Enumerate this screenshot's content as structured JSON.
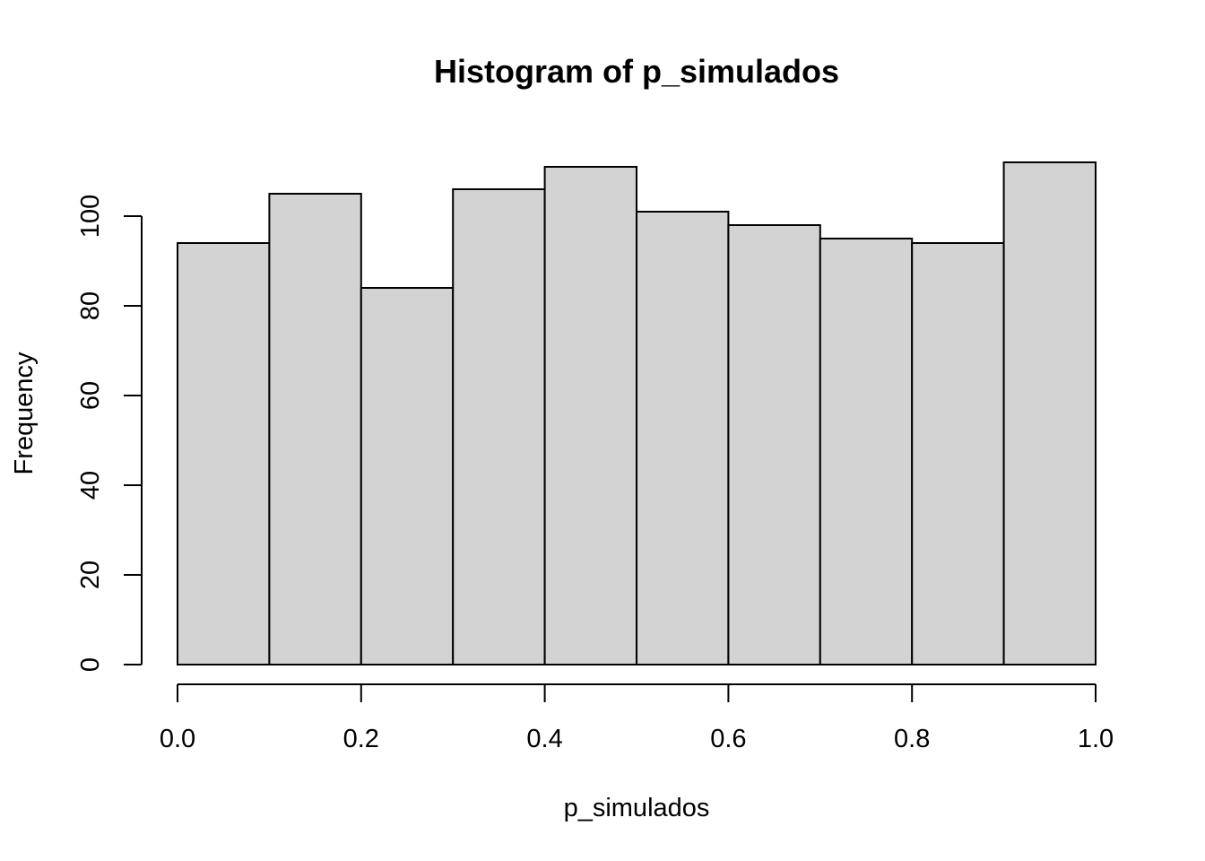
{
  "chart_data": {
    "type": "bar",
    "title": "Histogram of p_simulados",
    "xlabel": "p_simulados",
    "ylabel": "Frequency",
    "bin_edges": [
      0.0,
      0.1,
      0.2,
      0.3,
      0.4,
      0.5,
      0.6,
      0.7,
      0.8,
      0.9,
      1.0
    ],
    "values": [
      94,
      105,
      84,
      106,
      111,
      101,
      98,
      95,
      94,
      112
    ],
    "xlim": [
      0.0,
      1.0
    ],
    "ylim": [
      0,
      112
    ],
    "x_ticks": [
      {
        "value": 0.0,
        "label": "0.0"
      },
      {
        "value": 0.2,
        "label": "0.2"
      },
      {
        "value": 0.4,
        "label": "0.4"
      },
      {
        "value": 0.6,
        "label": "0.6"
      },
      {
        "value": 0.8,
        "label": "0.8"
      },
      {
        "value": 1.0,
        "label": "1.0"
      }
    ],
    "y_ticks": [
      {
        "value": 0,
        "label": "0"
      },
      {
        "value": 20,
        "label": "20"
      },
      {
        "value": 40,
        "label": "40"
      },
      {
        "value": 60,
        "label": "60"
      },
      {
        "value": 80,
        "label": "80"
      },
      {
        "value": 100,
        "label": "100"
      }
    ],
    "grid": false,
    "colors": {
      "bar_fill": "#d3d3d3",
      "bar_stroke": "#000000",
      "axis": "#000000",
      "background": "#ffffff"
    }
  }
}
